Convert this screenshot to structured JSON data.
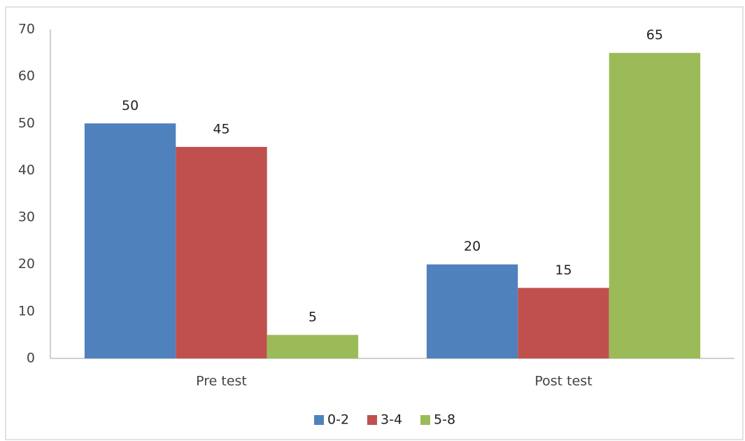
{
  "chart_data": {
    "type": "bar",
    "categories": [
      "Pre test",
      "Post test"
    ],
    "series": [
      {
        "name": "0-2",
        "color": "#4f81bd",
        "values": [
          50,
          20
        ]
      },
      {
        "name": "3-4",
        "color": "#c0504d",
        "values": [
          45,
          15
        ]
      },
      {
        "name": "5-8",
        "color": "#9bbb59",
        "values": [
          5,
          65
        ]
      }
    ],
    "ylim": [
      0,
      70
    ],
    "yticks": [
      0,
      10,
      20,
      30,
      40,
      50,
      60,
      70
    ],
    "grid": false,
    "legend": "bottom"
  }
}
